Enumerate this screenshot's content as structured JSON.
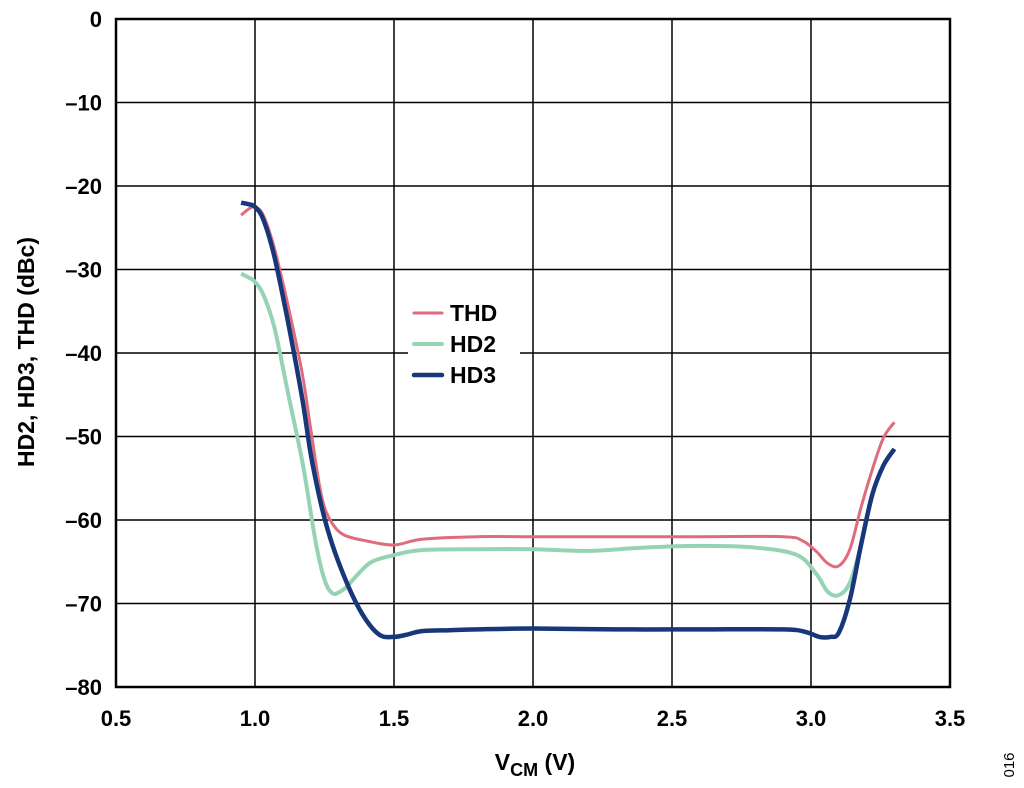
{
  "chart_data": {
    "type": "line",
    "title": "",
    "xlabel": "V",
    "xlabel_sub": "CM",
    "xlabel_suffix": " (V)",
    "ylabel": "HD2, HD3, THD (dBc)",
    "xlim": [
      0.5,
      3.5
    ],
    "ylim": [
      -80,
      0
    ],
    "xticks": [
      0.5,
      1.0,
      1.5,
      2.0,
      2.5,
      3.0,
      3.5
    ],
    "xtick_labels": [
      "0.5",
      "1.0",
      "1.5",
      "2.0",
      "2.5",
      "3.0",
      "3.5"
    ],
    "yticks": [
      0,
      -10,
      -20,
      -30,
      -40,
      -50,
      -60,
      -70,
      -80
    ],
    "ytick_labels": [
      "0",
      "–10",
      "–20",
      "–30",
      "–40",
      "–50",
      "–60",
      "–70",
      "–80"
    ],
    "grid": true,
    "legend_position": "center-left",
    "figure_id": "016",
    "series": [
      {
        "name": "THD",
        "color": "#e06b7d",
        "x": [
          0.95,
          0.98,
          1.0,
          1.03,
          1.07,
          1.12,
          1.17,
          1.2,
          1.23,
          1.25,
          1.28,
          1.32,
          1.4,
          1.5,
          1.6,
          1.8,
          2.0,
          2.3,
          2.6,
          2.9,
          2.97,
          3.02,
          3.06,
          3.1,
          3.14,
          3.18,
          3.22,
          3.26,
          3.3
        ],
        "y": [
          -23.5,
          -22.7,
          -22.5,
          -23.5,
          -27.5,
          -34.5,
          -42.5,
          -49,
          -55.5,
          -58.5,
          -60.5,
          -61.8,
          -62.5,
          -63,
          -62.3,
          -62,
          -62,
          -62,
          -62,
          -62,
          -62.5,
          -63.8,
          -65.2,
          -65.5,
          -63.5,
          -58.5,
          -54,
          -50.2,
          -48.3
        ]
      },
      {
        "name": "HD2",
        "color": "#96d3b4",
        "x": [
          0.95,
          0.98,
          1.0,
          1.03,
          1.07,
          1.12,
          1.17,
          1.2,
          1.22,
          1.24,
          1.26,
          1.28,
          1.3,
          1.33,
          1.37,
          1.42,
          1.5,
          1.6,
          1.8,
          2.0,
          2.2,
          2.4,
          2.6,
          2.8,
          2.95,
          3.02,
          3.06,
          3.1,
          3.14,
          3.18,
          3.22,
          3.26,
          3.3
        ],
        "y": [
          -30.5,
          -31,
          -31.5,
          -33,
          -37,
          -45,
          -53,
          -59,
          -63,
          -66,
          -68,
          -68.8,
          -68.7,
          -68,
          -66.5,
          -65,
          -64.2,
          -63.6,
          -63.5,
          -63.5,
          -63.7,
          -63.3,
          -63.1,
          -63.3,
          -64.2,
          -66.5,
          -68.6,
          -69,
          -67.5,
          -63,
          -57,
          -53.5,
          -51.5
        ]
      },
      {
        "name": "HD3",
        "color": "#17377a",
        "x": [
          0.95,
          0.98,
          1.0,
          1.03,
          1.07,
          1.12,
          1.17,
          1.2,
          1.23,
          1.26,
          1.3,
          1.35,
          1.4,
          1.45,
          1.5,
          1.55,
          1.6,
          1.7,
          1.8,
          2.0,
          2.3,
          2.6,
          2.9,
          2.98,
          3.03,
          3.07,
          3.1,
          3.14,
          3.18,
          3.22,
          3.26,
          3.3
        ],
        "y": [
          -22,
          -22.2,
          -22.5,
          -24,
          -28.5,
          -36.5,
          -45.5,
          -52,
          -57,
          -61,
          -65,
          -69,
          -72,
          -73.8,
          -74,
          -73.7,
          -73.3,
          -73.2,
          -73.1,
          -73,
          -73.1,
          -73.1,
          -73.1,
          -73.4,
          -74,
          -74,
          -73.5,
          -69.5,
          -63,
          -57,
          -53.5,
          -51.5
        ]
      }
    ]
  }
}
